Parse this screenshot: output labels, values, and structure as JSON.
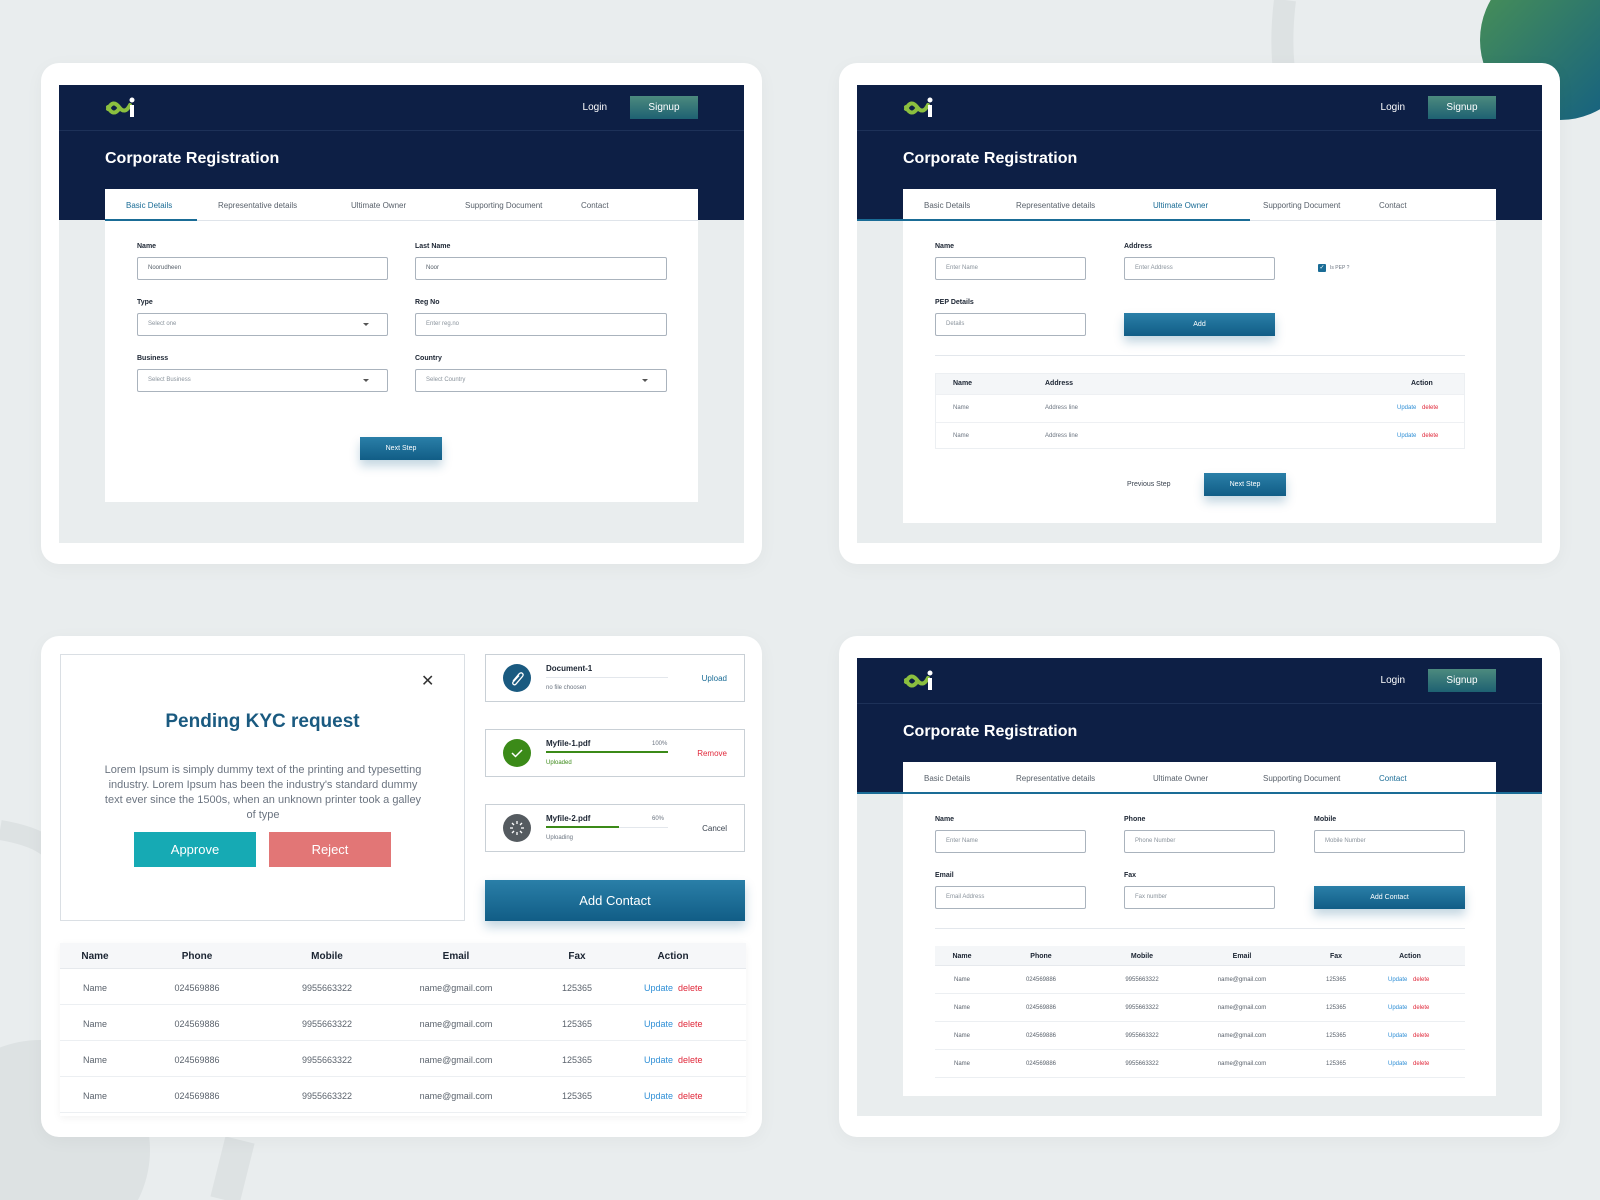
{
  "app": {
    "login": "Login",
    "signup": "Signup",
    "title": "Corporate Registration"
  },
  "tabs": [
    "Basic Details",
    "Representative details",
    "Ultimate Owner",
    "Supporting Document",
    "Contact"
  ],
  "basic": {
    "name_label": "Name",
    "name_value": "Noorudheen",
    "last_label": "Last Name",
    "last_value": "Noor",
    "type_label": "Type",
    "type_value": "Select one",
    "reg_label": "Reg No",
    "reg_placeholder": "Enter reg.no",
    "business_label": "Business",
    "business_value": "Select Business",
    "country_label": "Country",
    "country_value": "Select Country",
    "next": "Next Step"
  },
  "owner": {
    "name_label": "Name",
    "name_placeholder": "Enter Name",
    "address_label": "Address",
    "address_placeholder": "Enter Address",
    "pep_check": "Is PEP ?",
    "pep_label": "PEP Details",
    "pep_placeholder": "Details",
    "add": "Add",
    "headers": [
      "Name",
      "Address",
      "Action"
    ],
    "rows": [
      [
        "Name",
        "Address line"
      ],
      [
        "Name",
        "Address line"
      ]
    ],
    "update": "Update",
    "delete": "delete",
    "prev": "Previous Step",
    "next": "Next Step"
  },
  "kyc": {
    "title": "Pending KYC request",
    "body": "Lorem Ipsum is simply dummy text of the printing and typesetting industry. Lorem Ipsum has been the industry's standard dummy text ever since the 1500s, when an unknown printer took a galley of type",
    "approve": "Approve",
    "reject": "Reject"
  },
  "uploads": [
    {
      "name": "Document-1",
      "status": "no file choosen",
      "action": "Upload",
      "percent_text": "",
      "progress": 0,
      "color": "#1a5a80"
    },
    {
      "name": "Myfile-1.pdf",
      "status": "Uploaded",
      "action": "Remove",
      "percent_text": "100%",
      "progress": 1.0,
      "color": "#3b8a18"
    },
    {
      "name": "Myfile-2.pdf",
      "status": "Uploading",
      "action": "Cancel",
      "percent_text": "60%",
      "progress": 0.6,
      "color": "#555b60"
    }
  ],
  "add_contact": "Add Contact",
  "contact_table": {
    "headers": [
      "Name",
      "Phone",
      "Mobile",
      "Email",
      "Fax",
      "Action"
    ],
    "rows": [
      [
        "Name",
        "024569886",
        "9955663322",
        "name@gmail.com",
        "125365"
      ],
      [
        "Name",
        "024569886",
        "9955663322",
        "name@gmail.com",
        "125365"
      ],
      [
        "Name",
        "024569886",
        "9955663322",
        "name@gmail.com",
        "125365"
      ],
      [
        "Name",
        "024569886",
        "9955663322",
        "name@gmail.com",
        "125365"
      ]
    ],
    "update": "Update",
    "delete": "delete"
  },
  "contact": {
    "name_label": "Name",
    "name_placeholder": "Enter Name",
    "phone_label": "Phone",
    "phone_placeholder": "Phone Number",
    "mobile_label": "Mobile",
    "mobile_placeholder": "Mobile Number",
    "email_label": "Email",
    "email_placeholder": "Email Address",
    "fax_label": "Fax",
    "fax_placeholder": "Fax number",
    "add": "Add Contact"
  },
  "colors": {
    "navy": "#0d1f45",
    "accent": "#1a6c96",
    "approve": "#16aab4",
    "reject": "#e27676",
    "delete": "#e0283a",
    "update": "#2f8fd6"
  }
}
